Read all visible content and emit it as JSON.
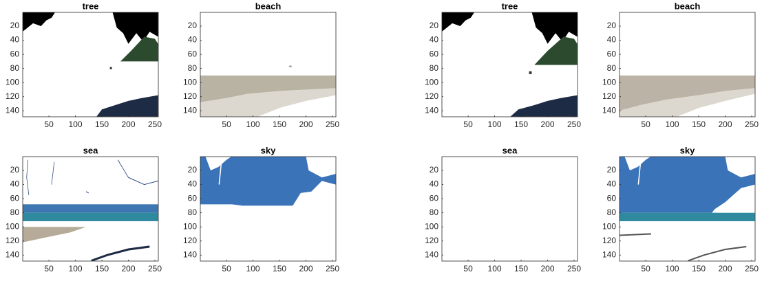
{
  "chart_data": [
    {
      "type": "image",
      "title": "tree",
      "xlim": [
        0.5,
        256.5
      ],
      "ylim": [
        0.5,
        148.5
      ],
      "xticks": [
        50,
        100,
        150,
        200,
        250
      ],
      "yticks": [
        20,
        40,
        60,
        80,
        100,
        120,
        140
      ]
    },
    {
      "type": "image",
      "title": "beach",
      "xlim": [
        0.5,
        256.5
      ],
      "ylim": [
        0.5,
        148.5
      ],
      "xticks": [
        50,
        100,
        150,
        200,
        250
      ],
      "yticks": [
        20,
        40,
        60,
        80,
        100,
        120,
        140
      ]
    },
    {
      "type": "image",
      "title": "tree",
      "xlim": [
        0.5,
        256.5
      ],
      "ylim": [
        0.5,
        148.5
      ],
      "xticks": [
        50,
        100,
        150,
        200,
        250
      ],
      "yticks": [
        20,
        40,
        60,
        80,
        100,
        120,
        140
      ]
    },
    {
      "type": "image",
      "title": "beach",
      "xlim": [
        0.5,
        256.5
      ],
      "ylim": [
        0.5,
        148.5
      ],
      "xticks": [
        50,
        100,
        150,
        200,
        250
      ],
      "yticks": [
        20,
        40,
        60,
        80,
        100,
        120,
        140
      ]
    },
    {
      "type": "image",
      "title": "sea",
      "xlim": [
        0.5,
        256.5
      ],
      "ylim": [
        0.5,
        148.5
      ],
      "xticks": [
        50,
        100,
        150,
        200,
        250
      ],
      "yticks": [
        20,
        40,
        60,
        80,
        100,
        120,
        140
      ]
    },
    {
      "type": "image",
      "title": "sky",
      "xlim": [
        0.5,
        256.5
      ],
      "ylim": [
        0.5,
        148.5
      ],
      "xticks": [
        50,
        100,
        150,
        200,
        250
      ],
      "yticks": [
        20,
        40,
        60,
        80,
        100,
        120,
        140
      ]
    },
    {
      "type": "image",
      "title": "sea",
      "xlim": [
        0.5,
        256.5
      ],
      "ylim": [
        0.5,
        148.5
      ],
      "xticks": [
        50,
        100,
        150,
        200,
        250
      ],
      "yticks": [
        20,
        40,
        60,
        80,
        100,
        120,
        140
      ]
    },
    {
      "type": "image",
      "title": "sky",
      "xlim": [
        0.5,
        256.5
      ],
      "ylim": [
        0.5,
        148.5
      ],
      "xticks": [
        50,
        100,
        150,
        200,
        250
      ],
      "yticks": [
        20,
        40,
        60,
        80,
        100,
        120,
        140
      ]
    }
  ]
}
